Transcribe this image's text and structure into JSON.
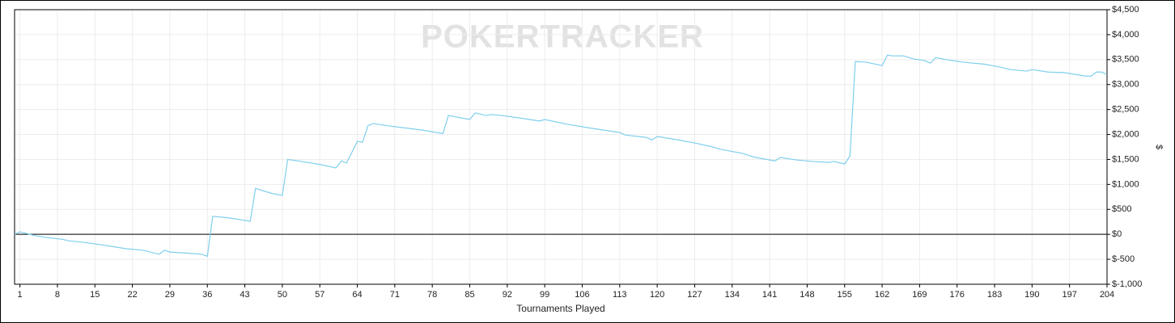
{
  "chart_data": {
    "type": "line",
    "watermark": "POKERTRACKER",
    "x_label": "Tournaments Played",
    "y_label": "$",
    "xlim": [
      0,
      204
    ],
    "xticks": [
      1,
      8,
      15,
      22,
      29,
      36,
      43,
      50,
      57,
      64,
      71,
      78,
      85,
      92,
      99,
      106,
      113,
      120,
      127,
      134,
      141,
      148,
      155,
      162,
      169,
      176,
      183,
      190,
      197,
      204
    ],
    "ylim": [
      -1000,
      4500
    ],
    "yticks": [
      {
        "value": -1000,
        "label": "$-1,000"
      },
      {
        "value": -500,
        "label": "$-500"
      },
      {
        "value": 0,
        "label": "$0"
      },
      {
        "value": 500,
        "label": "$500"
      },
      {
        "value": 1000,
        "label": "$1,000"
      },
      {
        "value": 1500,
        "label": "$1,500"
      },
      {
        "value": 2000,
        "label": "$2,000"
      },
      {
        "value": 2500,
        "label": "$2,500"
      },
      {
        "value": 3000,
        "label": "$3,000"
      },
      {
        "value": 3500,
        "label": "$3,500"
      },
      {
        "value": 4000,
        "label": "$4,000"
      },
      {
        "value": 4500,
        "label": "$4,500"
      }
    ],
    "grid": true,
    "y_axis_side": "right",
    "color": "#7fcfee",
    "x": [
      0,
      1,
      4,
      6,
      9,
      10,
      12,
      15,
      18,
      21,
      24,
      27,
      28,
      29,
      32,
      35,
      36,
      37,
      40,
      44,
      45,
      48,
      50,
      51,
      53,
      57,
      60,
      61,
      62,
      64,
      65,
      66,
      67,
      70,
      73,
      76,
      80,
      81,
      85,
      86,
      87,
      88,
      89,
      91,
      95,
      98,
      99,
      103,
      108,
      113,
      114,
      118,
      119,
      120,
      124,
      127,
      130,
      132,
      136,
      138,
      142,
      143,
      146,
      149,
      152,
      153,
      155,
      156,
      157,
      159,
      162,
      163,
      164,
      166,
      168,
      170,
      171,
      172,
      174,
      177,
      181,
      184,
      186,
      189,
      190,
      193,
      196,
      200,
      201,
      202,
      203,
      204
    ],
    "values": [
      0,
      50,
      -30,
      -65,
      -100,
      -130,
      -150,
      -190,
      -240,
      -290,
      -320,
      -400,
      -320,
      -355,
      -375,
      -400,
      -440,
      360,
      330,
      260,
      920,
      820,
      780,
      1500,
      1470,
      1400,
      1330,
      1470,
      1430,
      1860,
      1845,
      2180,
      2220,
      2170,
      2130,
      2090,
      2020,
      2380,
      2300,
      2430,
      2410,
      2380,
      2400,
      2380,
      2320,
      2270,
      2300,
      2210,
      2120,
      2040,
      1990,
      1940,
      1890,
      1960,
      1890,
      1830,
      1760,
      1700,
      1620,
      1550,
      1470,
      1540,
      1490,
      1460,
      1440,
      1460,
      1410,
      1570,
      3460,
      3450,
      3380,
      3590,
      3575,
      3575,
      3510,
      3480,
      3430,
      3540,
      3500,
      3450,
      3410,
      3350,
      3300,
      3270,
      3300,
      3250,
      3240,
      3170,
      3170,
      3250,
      3250,
      3200
    ]
  }
}
